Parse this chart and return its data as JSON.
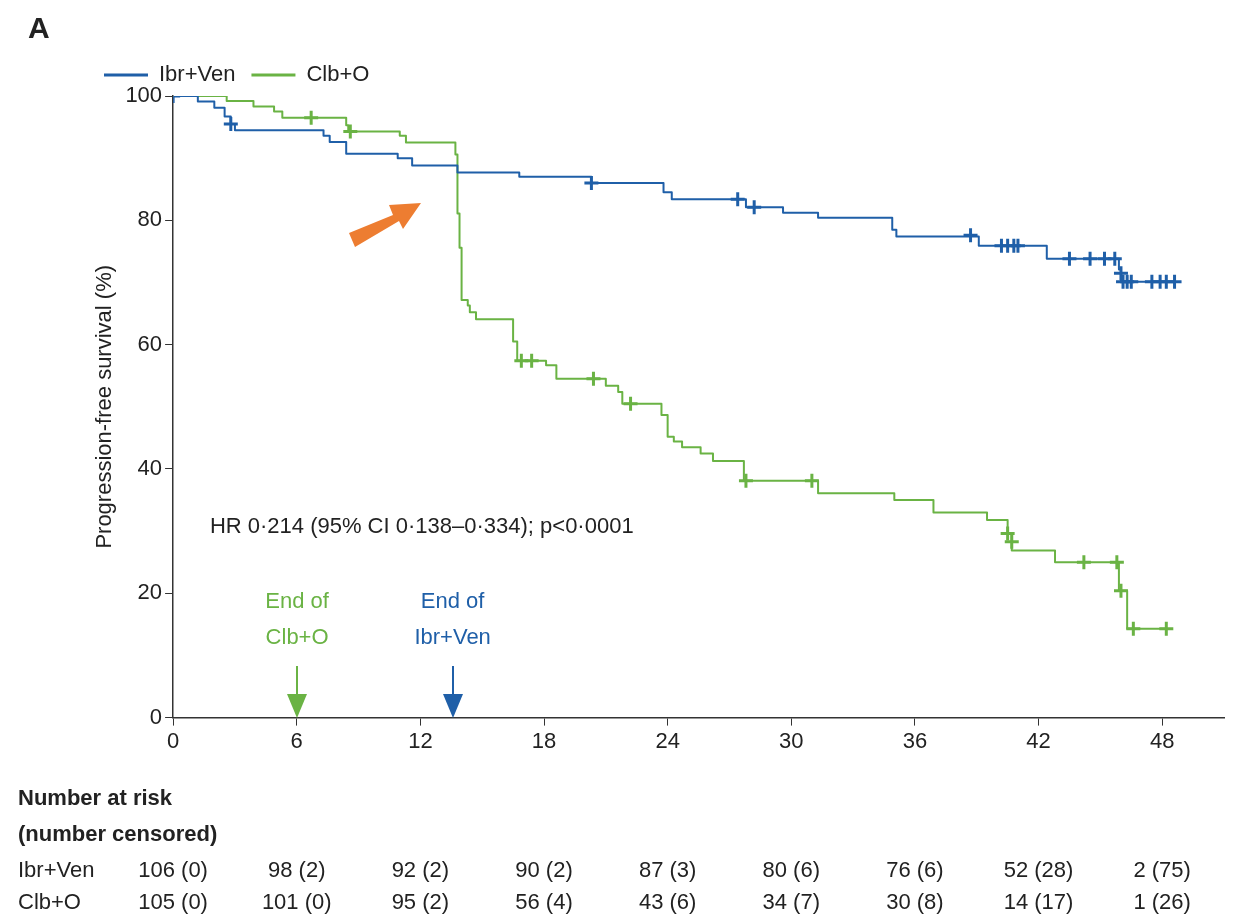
{
  "chart_data": {
    "type": "step",
    "ylabel": "Progression-free survival (%)",
    "xlim": [
      0,
      51
    ],
    "xticks": [
      0,
      6,
      12,
      18,
      24,
      30,
      36,
      42,
      48
    ],
    "ylim": [
      0,
      100
    ],
    "yticks": [
      0,
      20,
      40,
      60,
      80,
      100
    ],
    "legend": "top left",
    "marker": "none",
    "series": [
      {
        "name": "Ibr+Ven",
        "color": "#1f5fa8",
        "x": [
          0,
          1.2,
          2.0,
          2.5,
          2.8,
          3.0,
          7.3,
          7.6,
          8.4,
          10.9,
          11.6,
          13.8,
          16.8,
          20.3,
          23.8,
          24.2,
          27.8,
          29.6,
          31.3,
          34.9,
          35.1,
          39.1,
          42.4,
          45.9,
          46.0,
          48.6
        ],
        "values": [
          100,
          99.1,
          98.1,
          96.7,
          95.5,
          94.5,
          93.6,
          92.6,
          90.7,
          90.0,
          88.8,
          87.7,
          87.0,
          86.0,
          84.5,
          83.4,
          82.1,
          81.2,
          80.4,
          78.5,
          77.4,
          75.9,
          73.8,
          72.1,
          70.1,
          70.1
        ]
      },
      {
        "name": "Clb+O",
        "color": "#6ab344",
        "x": [
          0,
          2.6,
          3.9,
          4.9,
          5.3,
          8.4,
          8.5,
          11.0,
          11.3,
          13.7,
          13.8,
          13.9,
          14.0,
          14.3,
          14.4,
          14.7,
          16.5,
          16.7,
          18.1,
          18.6,
          21.0,
          21.6,
          21.8,
          23.7,
          24.0,
          24.3,
          24.7,
          25.6,
          26.2,
          27.7,
          31.3,
          35.0,
          36.9,
          39.5,
          40.5,
          40.7,
          42.8,
          45.9,
          46.3,
          48.2
        ],
        "values": [
          100,
          99.2,
          98.3,
          97.5,
          96.5,
          95.3,
          94.3,
          93.6,
          92.5,
          90.6,
          81.1,
          75.6,
          67.2,
          66.3,
          65.2,
          64.1,
          60.5,
          57.4,
          56.7,
          54.5,
          53.4,
          52.4,
          50.5,
          48.7,
          45.2,
          44.4,
          43.5,
          42.5,
          41.3,
          38.1,
          36.1,
          35.0,
          33.0,
          31.8,
          29.6,
          26.9,
          25.0,
          20.4,
          14.3,
          14.3
        ]
      },
      {
        "type": "scatter",
        "marker": "cross",
        "color": "#1f5fa8",
        "x": [
          0,
          2.8,
          20.3,
          27.4,
          28.2,
          38.7,
          40.2,
          40.5,
          40.8,
          41.0,
          43.5,
          44.5,
          45.2,
          45.7,
          46.0,
          46.1,
          46.3,
          46.5,
          47.5,
          47.9,
          48.2,
          48.6
        ],
        "values": [
          100,
          95.5,
          86.0,
          83.4,
          82.1,
          77.6,
          75.9,
          75.9,
          75.9,
          75.9,
          73.8,
          73.8,
          73.8,
          73.8,
          71.5,
          70.1,
          70.1,
          70.1,
          70.1,
          70.1,
          70.1,
          70.1
        ]
      },
      {
        "type": "scatter",
        "marker": "cross",
        "color": "#6ab344",
        "x": [
          6.7,
          8.6,
          16.9,
          17.4,
          20.4,
          22.2,
          27.8,
          31.0,
          40.5,
          40.7,
          44.2,
          45.8,
          46.0,
          46.6,
          48.2
        ],
        "values": [
          96.5,
          94.3,
          57.4,
          57.4,
          54.5,
          50.5,
          38.1,
          38.1,
          29.6,
          28.3,
          25.0,
          25.0,
          20.4,
          14.3,
          14.3
        ]
      }
    ],
    "annotations": [
      "A",
      "HR 0·214 (95% CI 0·138–0·334); p<0·0001",
      "Number at risk",
      "(number censored)",
      "End of Ibr+Ven",
      "End of Clb+O",
      "Ibr+Ven",
      "106 (0)",
      "98 (2)",
      "92 (2)",
      "90 (2)",
      "87 (3)",
      "80 (6)",
      "76 (6)",
      "52 (28)",
      "2 (75)",
      "Clb+O",
      "105 (0)",
      "101 (0)",
      "95 (2)",
      "56 (4)",
      "43 (6)",
      "34 (7)",
      "30 (8)",
      "14 (17)",
      "1 (26)"
    ]
  }
}
